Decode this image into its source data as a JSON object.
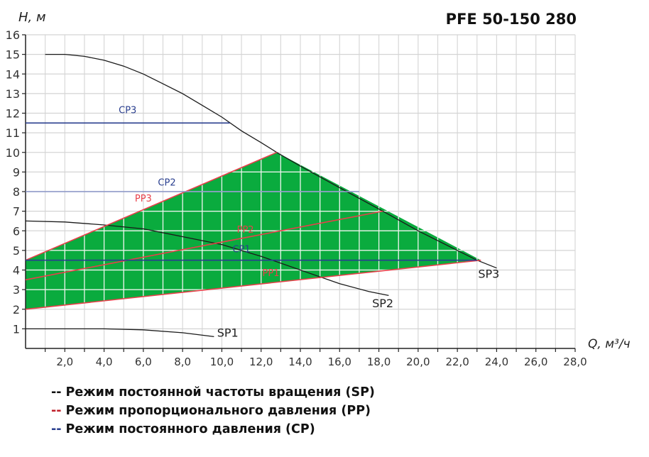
{
  "chart_data": {
    "type": "line",
    "title": "PFE 50-150 280",
    "xlabel": "Q, м³/ч",
    "ylabel": "H, м",
    "xlim": [
      0,
      28
    ],
    "ylim": [
      0,
      16
    ],
    "grid": true,
    "x_ticks": [
      "2,0",
      "4,0",
      "6,0",
      "8,0",
      "10,0",
      "12,0",
      "14,0",
      "16,0",
      "18,0",
      "20,0",
      "22,0",
      "24,0",
      "26,0",
      "28,0"
    ],
    "y_ticks": [
      "1",
      "2",
      "3",
      "4",
      "5",
      "6",
      "7",
      "8",
      "9",
      "10",
      "11",
      "12",
      "13",
      "14",
      "15",
      "16"
    ],
    "colors": {
      "sp": "#1a1a1a",
      "pp": "#e8404a",
      "cp": "#2a3f8f",
      "cp2": "#8a95c8",
      "region": "#0aab3e",
      "grid": "#d4d4d4"
    },
    "region": {
      "points": [
        [
          0,
          4.5
        ],
        [
          12.8,
          10
        ],
        [
          23.2,
          4.5
        ],
        [
          0,
          2
        ]
      ]
    },
    "series": [
      {
        "name": "SP3",
        "group": "sp",
        "points": [
          [
            1,
            15
          ],
          [
            2,
            15
          ],
          [
            3,
            14.9
          ],
          [
            4,
            14.7
          ],
          [
            5,
            14.4
          ],
          [
            6,
            14
          ],
          [
            7,
            13.5
          ],
          [
            8,
            13
          ],
          [
            9,
            12.4
          ],
          [
            10,
            11.8
          ],
          [
            11,
            11.1
          ],
          [
            12,
            10.5
          ],
          [
            12.8,
            10
          ],
          [
            14,
            9.3
          ],
          [
            16,
            8.2
          ],
          [
            18.2,
            7
          ],
          [
            20,
            6
          ],
          [
            22,
            5
          ],
          [
            23,
            4.5
          ],
          [
            24,
            4.1
          ]
        ]
      },
      {
        "name": "SP2",
        "group": "sp",
        "points": [
          [
            0,
            6.5
          ],
          [
            2,
            6.45
          ],
          [
            4,
            6.3
          ],
          [
            6,
            6.1
          ],
          [
            8,
            5.7
          ],
          [
            10,
            5.3
          ],
          [
            12,
            4.7
          ],
          [
            14,
            4
          ],
          [
            16,
            3.3
          ],
          [
            17.5,
            2.9
          ],
          [
            18.5,
            2.7
          ]
        ]
      },
      {
        "name": "SP1",
        "group": "sp",
        "points": [
          [
            0,
            1
          ],
          [
            2,
            1
          ],
          [
            4,
            1
          ],
          [
            6,
            0.95
          ],
          [
            8,
            0.8
          ],
          [
            9.6,
            0.6
          ]
        ]
      },
      {
        "name": "PP3",
        "group": "pp",
        "points": [
          [
            0,
            4.5
          ],
          [
            12.8,
            10
          ]
        ]
      },
      {
        "name": "PP2",
        "group": "pp",
        "points": [
          [
            0,
            3.5
          ],
          [
            18.2,
            7
          ]
        ]
      },
      {
        "name": "PP1",
        "group": "pp",
        "points": [
          [
            0,
            2
          ],
          [
            23.2,
            4.5
          ]
        ]
      },
      {
        "name": "CP3",
        "group": "cp",
        "points": [
          [
            0,
            11.5
          ],
          [
            10.4,
            11.5
          ]
        ]
      },
      {
        "name": "CP2",
        "group": "cp2",
        "points": [
          [
            0,
            8
          ],
          [
            17,
            8
          ]
        ]
      },
      {
        "name": "CP1",
        "group": "cp",
        "points": [
          [
            0,
            4.5
          ],
          [
            23,
            4.5
          ]
        ]
      }
    ],
    "annotations": [
      {
        "text": "CP3",
        "at": [
          5.2,
          12
        ],
        "color": "cp"
      },
      {
        "text": "CP2",
        "at": [
          7.2,
          8.3
        ],
        "color": "cp"
      },
      {
        "text": "PP3",
        "at": [
          6,
          7.5
        ],
        "color": "pp"
      },
      {
        "text": "PP2",
        "at": [
          11.2,
          5.9
        ],
        "color": "pp"
      },
      {
        "text": "CP1",
        "at": [
          11,
          4.9
        ],
        "color": "cp"
      },
      {
        "text": "PP1",
        "at": [
          12.5,
          3.7
        ],
        "color": "pp"
      },
      {
        "text": "SP1",
        "at": [
          10.3,
          0.6
        ],
        "color": "sp"
      },
      {
        "text": "SP2",
        "at": [
          18.2,
          2.1
        ],
        "color": "sp"
      },
      {
        "text": "SP3",
        "at": [
          23.6,
          3.6
        ],
        "color": "sp"
      }
    ]
  },
  "legend": [
    {
      "dash": "--",
      "color": "#111111",
      "label": "Режим постоянной частоты вращения (SP)"
    },
    {
      "dash": "--",
      "color": "#c0202a",
      "label": "Режим пропорционального давления (PP)"
    },
    {
      "dash": "--",
      "color": "#2a3f8f",
      "label": "Режим постоянного давления (CP)"
    }
  ]
}
